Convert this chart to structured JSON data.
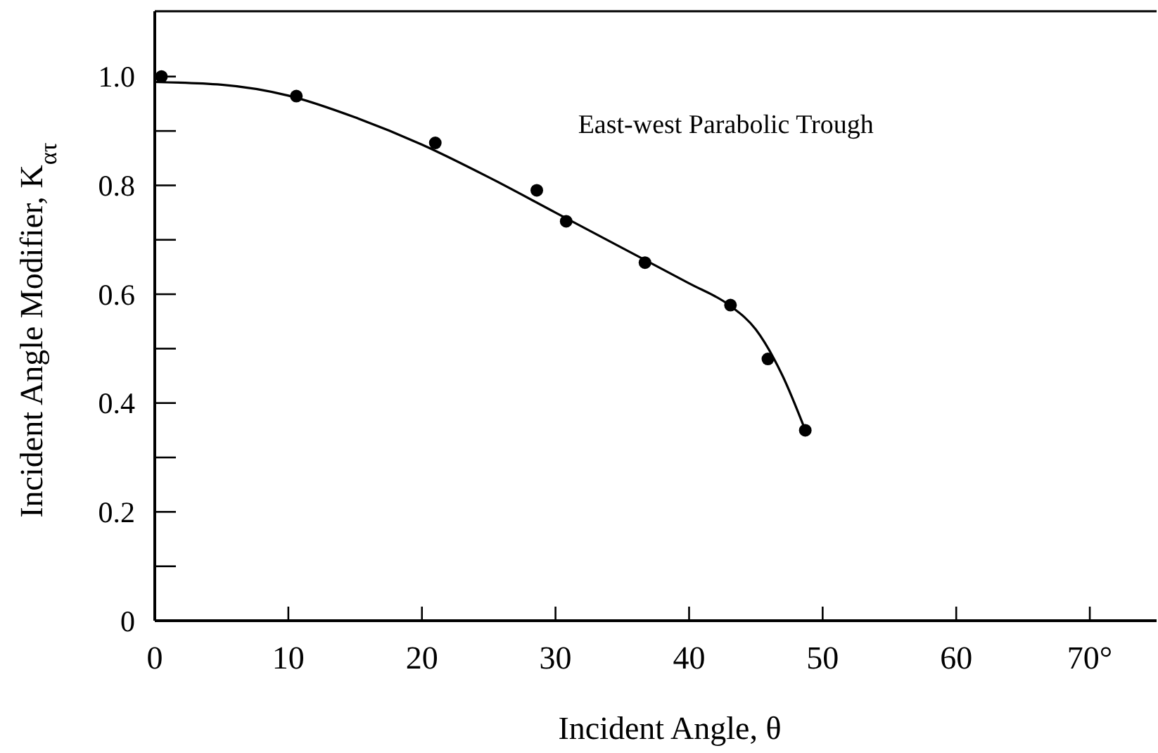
{
  "chart_data": {
    "type": "scatter",
    "xlabel": "Incident Angle, θ",
    "ylabel": "Incident Angle Modifier, K$_{ατ}$",
    "annotations": [
      "East-west Parabolic Trough"
    ],
    "xlim": [
      0,
      75
    ],
    "ylim": [
      0,
      1.12
    ],
    "xticks": [
      0,
      10,
      20,
      30,
      40,
      50,
      60,
      {
        "value": 70,
        "label": "70°"
      }
    ],
    "yticks": [
      {
        "value": 0,
        "label": "0"
      },
      {
        "value": 0.1,
        "label": null
      },
      0.2,
      {
        "value": 0.3,
        "label": null
      },
      0.4,
      {
        "value": 0.5,
        "label": null
      },
      0.6,
      {
        "value": 0.7,
        "label": null
      },
      0.8,
      {
        "value": 0.9,
        "label": null
      },
      {
        "value": 1,
        "label": "1.0"
      }
    ],
    "grid": false,
    "series": [
      {
        "type": "line",
        "color": "#000000",
        "marker": "none",
        "line_style": "solid",
        "x": [
          0,
          5,
          10,
          15,
          20,
          25,
          30,
          35,
          40,
          43,
          45,
          47,
          48.7
        ],
        "values": [
          0.99,
          0.985,
          0.965,
          0.925,
          0.875,
          0.815,
          0.75,
          0.685,
          0.62,
          0.58,
          0.535,
          0.45,
          0.35
        ]
      },
      {
        "color": "#000000",
        "marker": "circle",
        "x": [
          0.5,
          10.6,
          21,
          28.6,
          30.8,
          36.7,
          43.1,
          45.9,
          48.7
        ],
        "values": [
          1.0,
          0.964,
          0.878,
          0.791,
          0.734,
          0.658,
          0.58,
          0.481,
          0.35
        ]
      }
    ]
  }
}
